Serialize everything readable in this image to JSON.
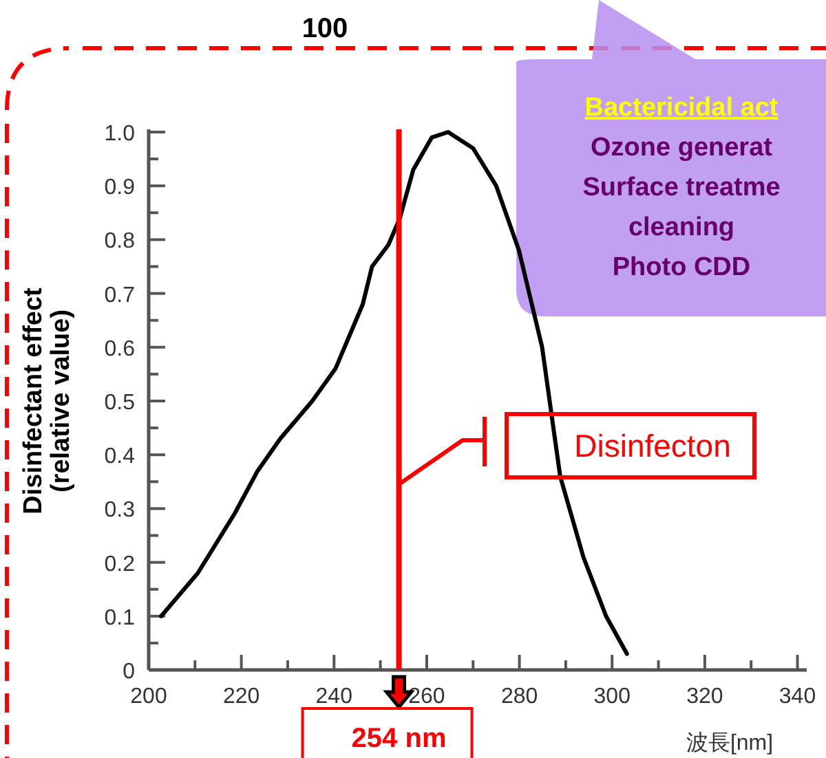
{
  "chart_data": {
    "type": "line",
    "xlabel": "波長[nm]",
    "ylabel": "Disinfectant effect\n(relative value)",
    "x": [
      202.7,
      210.6,
      218.5,
      223.5,
      228.4,
      235.3,
      240.3,
      246.2,
      248.2,
      251.7,
      254.2,
      257.1,
      261.1,
      264.6,
      270,
      275,
      279.9,
      284.9,
      288.8,
      293.8,
      298.7,
      303.2
    ],
    "series": [
      {
        "color": "#000000",
        "values": [
          0.1,
          0.18,
          0.29,
          0.37,
          0.43,
          0.5,
          0.56,
          0.68,
          0.75,
          0.79,
          0.84,
          0.93,
          0.99,
          1.0,
          0.97,
          0.9,
          0.78,
          0.6,
          0.36,
          0.21,
          0.1,
          0.03
        ]
      }
    ],
    "xlim": [
      200,
      342
    ],
    "ylim": [
      0,
      1.0
    ],
    "xticks": [
      200,
      220,
      240,
      260,
      280,
      300,
      320,
      340
    ],
    "yticks": [
      0,
      0.1,
      0.2,
      0.3,
      0.4,
      0.5,
      0.6,
      0.7,
      0.8,
      0.9,
      {
        "value": 1.0,
        "label": "1.0"
      }
    ],
    "ref_lines": [
      {
        "axis": "x",
        "value": 254,
        "label": "254 nm",
        "color": "#ff0000"
      }
    ],
    "annotations": [
      "100",
      "Bactericidal act",
      "Ozone generat",
      "Surface treatme",
      "cleaning",
      "Photo CDD",
      "Disinfecton"
    ],
    "grid": false,
    "marker": "none",
    "line_style": "solid"
  }
}
